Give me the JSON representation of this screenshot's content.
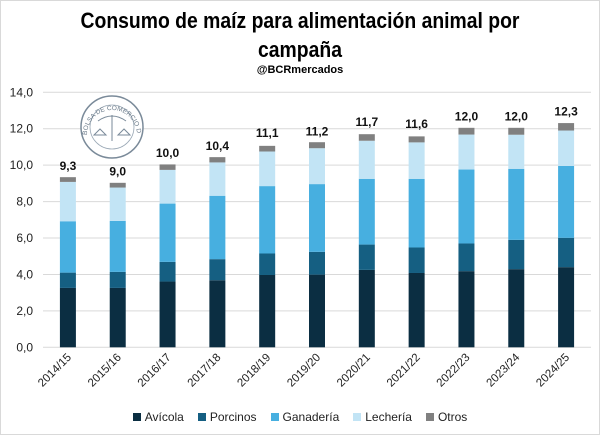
{
  "chart_data": {
    "type": "bar",
    "stacked": true,
    "title": "Consumo de maíz para alimentación animal por campaña",
    "subtitle": "@BCRmercados",
    "logo_text": "BOLSA DE COMERCIO DE ROSARIO",
    "xlabel": "",
    "ylabel": "",
    "ylim": [
      0,
      14
    ],
    "yticks": [
      "0,0",
      "2,0",
      "4,0",
      "6,0",
      "8,0",
      "10,0",
      "12,0",
      "14,0"
    ],
    "grid": true,
    "legend_position": "bottom",
    "categories": [
      "2014/15",
      "2015/16",
      "2016/17",
      "2017/18",
      "2018/19",
      "2019/20",
      "2020/21",
      "2021/22",
      "2022/23",
      "2023/24",
      "2024/25"
    ],
    "series": [
      {
        "name": "Avícola",
        "color": "#0b2e42",
        "values": [
          3.26,
          3.26,
          3.61,
          3.68,
          3.97,
          3.99,
          4.25,
          4.08,
          4.18,
          4.29,
          4.4
        ]
      },
      {
        "name": "Porcinos",
        "color": "#155f82",
        "values": [
          0.84,
          0.88,
          1.08,
          1.16,
          1.18,
          1.25,
          1.39,
          1.4,
          1.52,
          1.61,
          1.61
        ]
      },
      {
        "name": "Ganadería",
        "color": "#47afe0",
        "values": [
          2.82,
          2.8,
          3.2,
          3.48,
          3.7,
          3.72,
          3.61,
          3.77,
          4.06,
          3.9,
          3.95
        ]
      },
      {
        "name": "Lechería",
        "color": "#c2e4f5",
        "values": [
          2.16,
          1.83,
          1.85,
          1.83,
          1.9,
          1.97,
          2.09,
          2.0,
          1.92,
          1.87,
          1.94
        ]
      },
      {
        "name": "Otros",
        "color": "#808080",
        "values": [
          0.26,
          0.26,
          0.3,
          0.29,
          0.31,
          0.33,
          0.36,
          0.33,
          0.37,
          0.38,
          0.41
        ]
      }
    ],
    "totals": [
      "9,3",
      "9,0",
      "10,0",
      "10,4",
      "11,1",
      "11,2",
      "11,7",
      "11,6",
      "12,0",
      "12,0",
      "12,3"
    ],
    "total_values": [
      9.3,
      9.0,
      10.0,
      10.4,
      11.1,
      11.2,
      11.7,
      11.6,
      12.0,
      12.0,
      12.3
    ]
  }
}
